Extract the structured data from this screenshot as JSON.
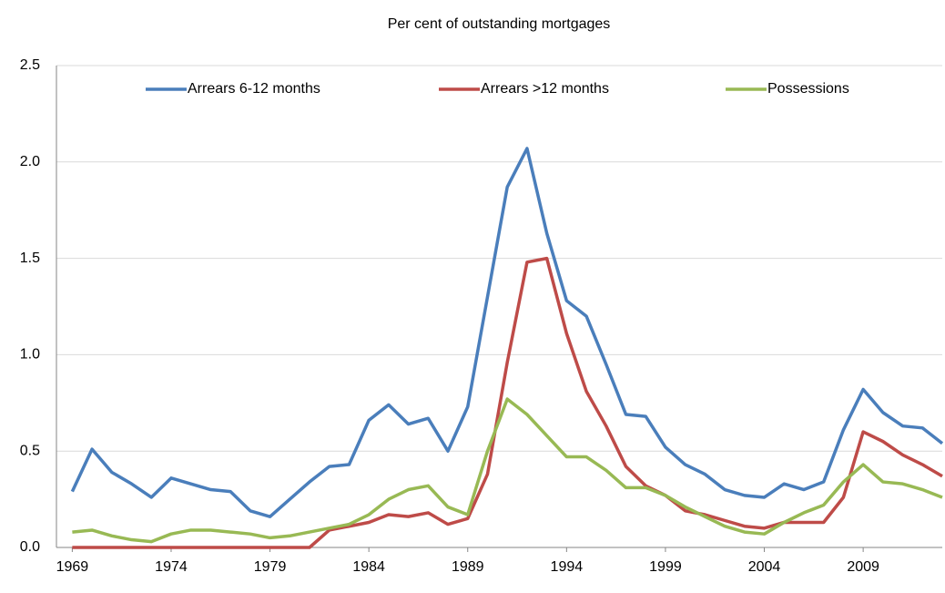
{
  "chart_data": {
    "type": "line",
    "title": "Per cent of outstanding mortgages",
    "x": [
      1969,
      1970,
      1971,
      1972,
      1973,
      1974,
      1975,
      1976,
      1977,
      1978,
      1979,
      1980,
      1981,
      1982,
      1983,
      1984,
      1985,
      1986,
      1987,
      1988,
      1989,
      1990,
      1991,
      1992,
      1993,
      1994,
      1995,
      1996,
      1997,
      1998,
      1999,
      2000,
      2001,
      2002,
      2003,
      2004,
      2005,
      2006,
      2007,
      2008,
      2009,
      2010,
      2011,
      2012,
      2013
    ],
    "series": [
      {
        "name": "Arrears 6-12 months",
        "color": "#4a7ebb",
        "values": [
          0.29,
          0.51,
          0.39,
          0.33,
          0.26,
          0.36,
          0.33,
          0.3,
          0.29,
          0.19,
          0.16,
          0.25,
          0.34,
          0.42,
          0.43,
          0.66,
          0.74,
          0.64,
          0.67,
          0.5,
          0.73,
          1.3,
          1.87,
          2.07,
          1.63,
          1.28,
          1.2,
          0.95,
          0.69,
          0.68,
          0.52,
          0.43,
          0.38,
          0.3,
          0.27,
          0.26,
          0.33,
          0.3,
          0.34,
          0.61,
          0.82,
          0.7,
          0.63,
          0.62,
          0.54
        ]
      },
      {
        "name": "Arrears >12 months",
        "color": "#be4b48",
        "values": [
          0,
          0,
          0,
          0,
          0,
          0,
          0,
          0,
          0,
          0,
          0,
          0,
          0,
          0.09,
          0.11,
          0.13,
          0.17,
          0.16,
          0.18,
          0.12,
          0.15,
          0.38,
          0.96,
          1.48,
          1.5,
          1.11,
          0.81,
          0.63,
          0.42,
          0.32,
          0.27,
          0.19,
          0.17,
          0.14,
          0.11,
          0.1,
          0.13,
          0.13,
          0.13,
          0.26,
          0.6,
          0.55,
          0.48,
          0.43,
          0.37
        ]
      },
      {
        "name": "Possessions",
        "color": "#98b954",
        "values": [
          0.08,
          0.09,
          0.06,
          0.04,
          0.03,
          0.07,
          0.09,
          0.09,
          0.08,
          0.07,
          0.05,
          0.06,
          0.08,
          0.1,
          0.12,
          0.17,
          0.25,
          0.3,
          0.32,
          0.21,
          0.17,
          0.5,
          0.77,
          0.69,
          0.58,
          0.47,
          0.47,
          0.4,
          0.31,
          0.31,
          0.27,
          0.21,
          0.16,
          0.11,
          0.08,
          0.07,
          0.13,
          0.18,
          0.22,
          0.34,
          0.43,
          0.34,
          0.33,
          0.3,
          0.26
        ]
      }
    ],
    "xlim": [
      1968.2,
      2013
    ],
    "xticks": [
      1969,
      1974,
      1979,
      1984,
      1989,
      1994,
      1999,
      2004,
      2009
    ],
    "ylim": [
      0,
      2.5
    ],
    "yticks": [
      {
        "value": 0,
        "label": "0.0"
      },
      {
        "value": 0.5,
        "label": "0.5"
      },
      {
        "value": 1,
        "label": "1.0"
      },
      {
        "value": 1.5,
        "label": "1.5"
      },
      {
        "value": 2,
        "label": "2.0"
      },
      {
        "value": 2.5,
        "label": "2.5"
      }
    ],
    "grid": true,
    "legend": "top"
  }
}
